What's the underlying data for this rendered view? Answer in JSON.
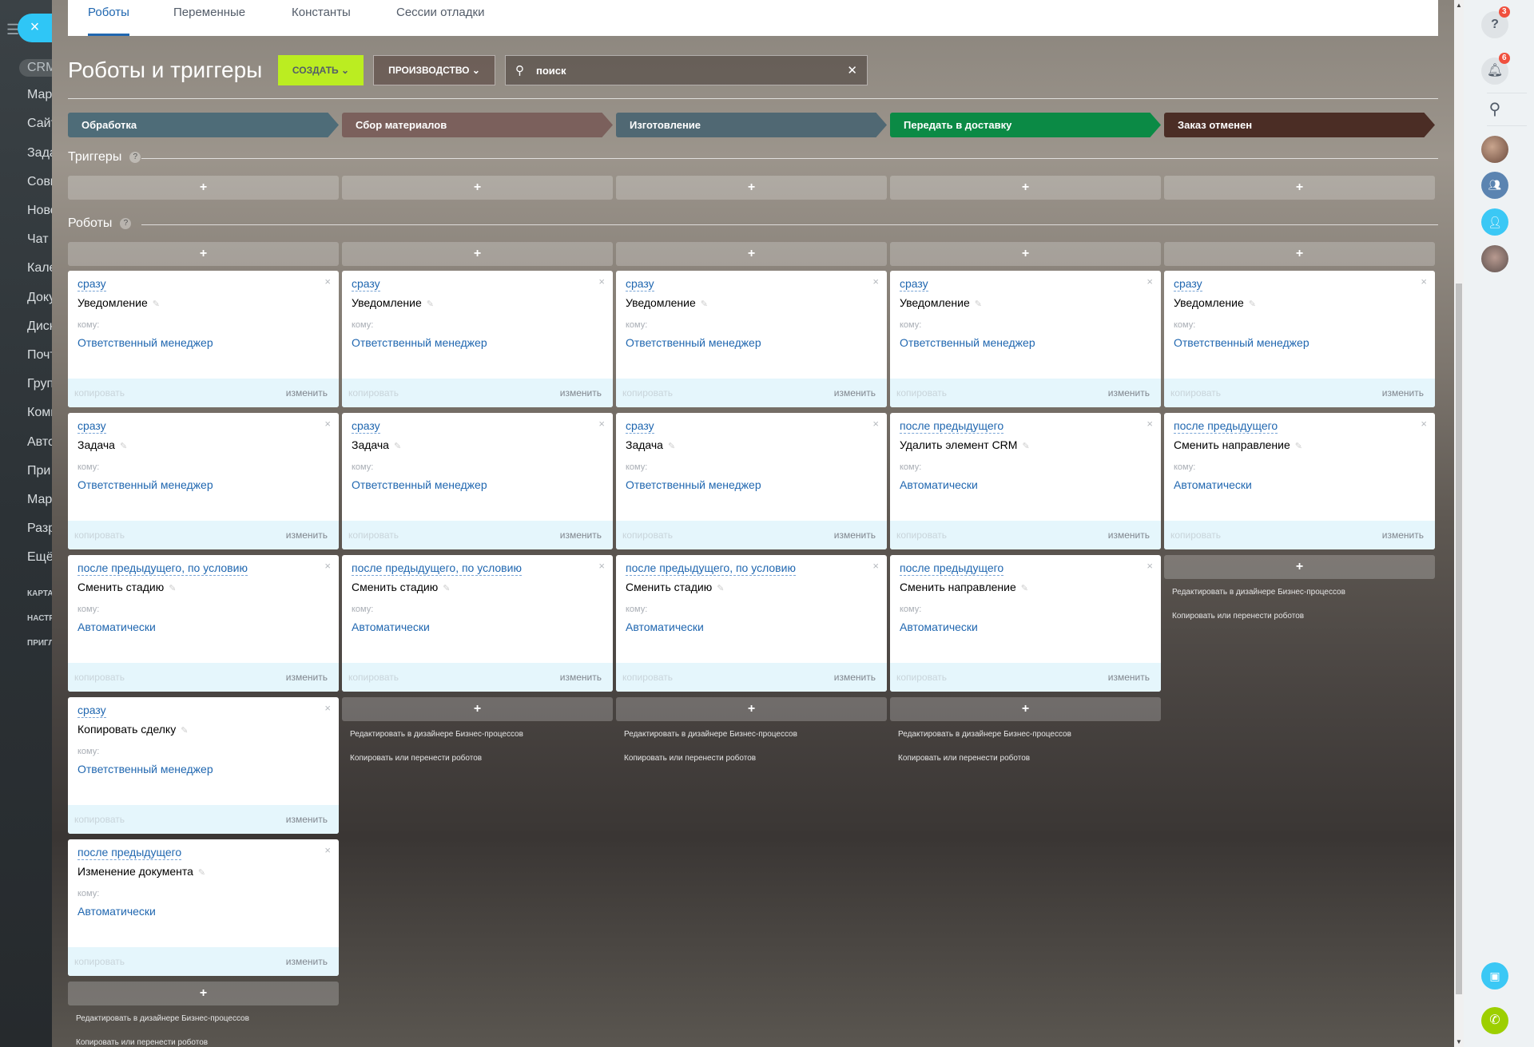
{
  "left_sidebar": {
    "items": [
      "CRM",
      "Мар",
      "Сайт",
      "Зада",
      "Совм",
      "Ново",
      "Чат",
      "Кале",
      "Доку",
      "Диск",
      "Почт",
      "Груп",
      "Комп",
      "Авто",
      "При",
      "Мар",
      "Разр",
      "Ещё",
      "КАРТА",
      "НАСТР",
      "ПРИГЛ"
    ]
  },
  "close_label": "×",
  "tabs": [
    {
      "label": "Роботы",
      "active": true
    },
    {
      "label": "Переменные"
    },
    {
      "label": "Константы"
    },
    {
      "label": "Сессии отладки"
    }
  ],
  "header": {
    "title": "Роботы и триггеры",
    "create_label": "СОЗДАТЬ",
    "pipeline_label": "ПРОИЗВОДСТВО",
    "search_placeholder": "поиск",
    "create_color": "#bbed21"
  },
  "stages": [
    {
      "name": "Обработка",
      "color": "#4e6c78"
    },
    {
      "name": "Сбор материалов",
      "color": "#7b605c"
    },
    {
      "name": "Изготовление",
      "color": "#506873"
    },
    {
      "name": "Передать в доставку",
      "color": "#0b8a45"
    },
    {
      "name": "Заказ отменен",
      "color": "#4b2d25"
    }
  ],
  "sections": {
    "triggers": "Триггеры",
    "robots": "Роботы"
  },
  "card_labels": {
    "to": "кому:",
    "copy": "копировать",
    "edit": "изменить"
  },
  "column_links": {
    "designer": "Редактировать в дизайнере Бизнес-процессов",
    "copy_move": "Копировать или перенести роботов"
  },
  "columns": [
    {
      "robots": [
        {
          "delay": "сразу",
          "title": "Уведомление",
          "to": "Ответственный менеджер"
        },
        {
          "delay": "сразу",
          "title": "Задача",
          "to": "Ответственный менеджер"
        },
        {
          "delay": "после предыдущего, по условию",
          "title": "Сменить стадию",
          "to": "Автоматически"
        },
        {
          "delay": "сразу",
          "title": "Копировать сделку",
          "to": "Ответственный менеджер"
        },
        {
          "delay": "после предыдущего",
          "title": "Изменение документа",
          "to": "Автоматически"
        }
      ]
    },
    {
      "robots": [
        {
          "delay": "сразу",
          "title": "Уведомление",
          "to": "Ответственный менеджер"
        },
        {
          "delay": "сразу",
          "title": "Задача",
          "to": "Ответственный менеджер"
        },
        {
          "delay": "после предыдущего, по условию",
          "title": "Сменить стадию",
          "to": "Автоматически"
        }
      ]
    },
    {
      "robots": [
        {
          "delay": "сразу",
          "title": "Уведомление",
          "to": "Ответственный менеджер"
        },
        {
          "delay": "сразу",
          "title": "Задача",
          "to": "Ответственный менеджер"
        },
        {
          "delay": "после предыдущего, по условию",
          "title": "Сменить стадию",
          "to": "Автоматически"
        }
      ]
    },
    {
      "robots": [
        {
          "delay": "сразу",
          "title": "Уведомление",
          "to": "Ответственный менеджер"
        },
        {
          "delay": "после предыдущего",
          "title": "Удалить элемент CRM",
          "to": "Автоматически"
        },
        {
          "delay": "после предыдущего",
          "title": "Сменить направление",
          "to": "Автоматически"
        }
      ]
    },
    {
      "robots": [
        {
          "delay": "сразу",
          "title": "Уведомление",
          "to": "Ответственный менеджер"
        },
        {
          "delay": "после предыдущего",
          "title": "Сменить направление",
          "to": "Автоматически"
        }
      ]
    }
  ],
  "right_bar": {
    "help_badge": "3",
    "notifications_badge": "6"
  }
}
